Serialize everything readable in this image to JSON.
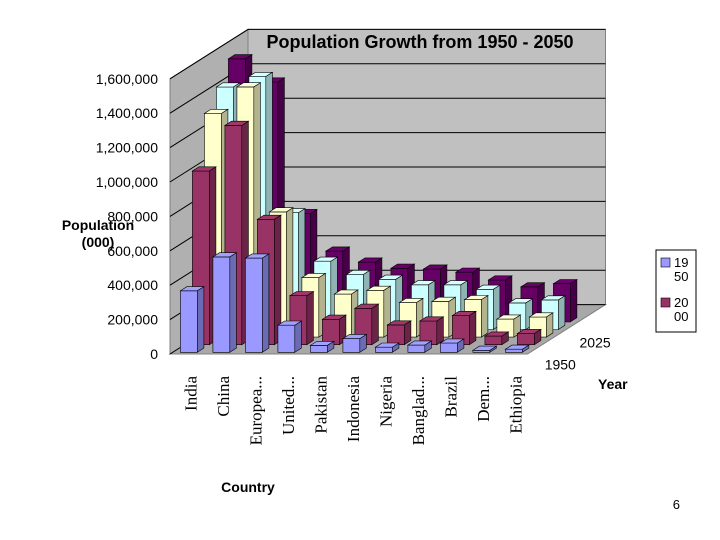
{
  "page_number": "6",
  "chart_data": {
    "type": "bar",
    "title": "Population Growth from 1950 - 2050",
    "ylabel": "Population (000)",
    "xlabel": "Country",
    "zlabel": "Year",
    "ylim": [
      0,
      1600000
    ],
    "yticks": [
      "0",
      "200,000",
      "400,000",
      "600,000",
      "800,000",
      "1,000,000",
      "1,200,000",
      "1,400,000",
      "1,600,000"
    ],
    "categories": [
      "India",
      "China",
      "Europea...",
      "United...",
      "Pakistan",
      "Indonesia",
      "Nigeria",
      "Banglad...",
      "Brazil",
      "Dem...",
      "Ethiopia"
    ],
    "depth_labels": [
      "1950",
      "2025"
    ],
    "series": [
      {
        "name": "1950",
        "legend_label": [
          "19",
          "50"
        ],
        "color": "#9999ff",
        "values": [
          358000,
          555000,
          548000,
          158000,
          40000,
          80000,
          30000,
          42000,
          54000,
          12000,
          18000
        ]
      },
      {
        "name": "2000",
        "legend_label": [
          "20",
          "00"
        ],
        "color": "#993366",
        "values": [
          1010000,
          1275000,
          729000,
          285000,
          148000,
          212000,
          115000,
          138000,
          170000,
          50000,
          65000
        ]
      },
      {
        "name": "",
        "color": "#ffffcc",
        "values": [
          1300000,
          1455000,
          728000,
          346000,
          250000,
          272000,
          201000,
          208000,
          218000,
          105000,
          117000
        ]
      },
      {
        "name": "",
        "color": "#ccffff",
        "values": [
          1410000,
          1471000,
          679000,
          397000,
          320000,
          292000,
          260000,
          260000,
          234000,
          155000,
          172000
        ]
      },
      {
        "name": "",
        "color": "#660066",
        "values": [
          1530000,
          1395000,
          630000,
          412000,
          348000,
          312000,
          307000,
          289000,
          244000,
          204000,
          222000
        ]
      }
    ],
    "legend": "right",
    "grid": true
  }
}
